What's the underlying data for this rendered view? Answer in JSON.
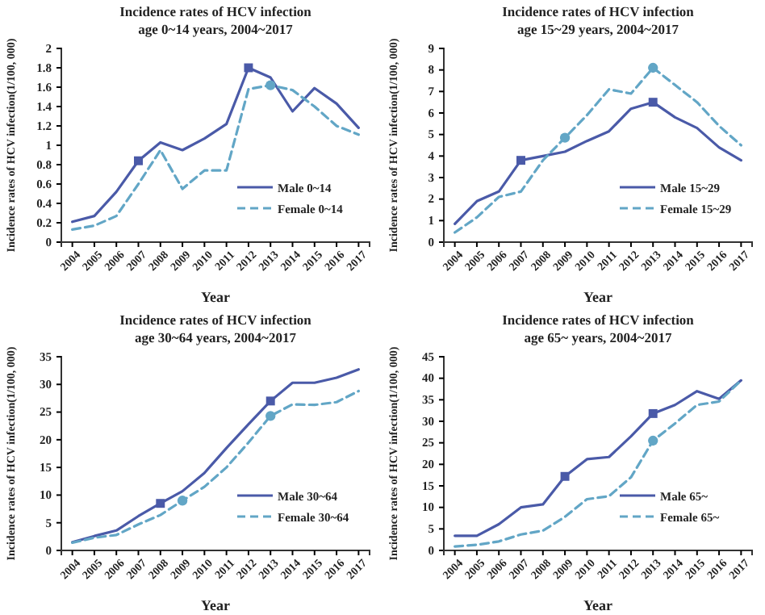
{
  "chart_data": [
    {
      "type": "line",
      "title": "Incidence rates of HCV infection",
      "subtitle": "age 0~14 years, 2004~2017",
      "xlabel": "Year",
      "ylabel": "Incidence rates of HCV infection(1/100, 000)",
      "categories": [
        "2004",
        "2005",
        "2006",
        "2007",
        "2008",
        "2009",
        "2010",
        "2011",
        "2012",
        "2013",
        "2014",
        "2015",
        "2016",
        "2017"
      ],
      "ylim": [
        0,
        2
      ],
      "yticks": [
        0,
        0.2,
        0.4,
        0.6,
        0.8,
        1,
        1.2,
        1.4,
        1.6,
        1.8,
        2
      ],
      "grid": false,
      "legend": "bottom right",
      "series": [
        {
          "name": "Male 0~14",
          "color": "#4a5aa8",
          "line_style": "solid",
          "values": [
            0.21,
            0.27,
            0.52,
            0.84,
            1.03,
            0.95,
            1.07,
            1.22,
            1.8,
            1.7,
            1.35,
            1.59,
            1.43,
            1.18
          ]
        },
        {
          "name": "Female 0~14",
          "color": "#62a6c6",
          "line_style": "dashed",
          "values": [
            0.13,
            0.17,
            0.27,
            0.6,
            0.95,
            0.55,
            0.74,
            0.74,
            1.58,
            1.62,
            1.57,
            1.4,
            1.2,
            1.11
          ]
        },
        {
          "type": "scatter",
          "color": "#4a5aa8",
          "marker": "square",
          "values": [
            null,
            null,
            null,
            0.84,
            null,
            null,
            null,
            null,
            1.8,
            null,
            null,
            null,
            null,
            null
          ]
        },
        {
          "type": "scatter",
          "color": "#62a6c6",
          "marker": "circle",
          "values": [
            null,
            null,
            null,
            null,
            null,
            null,
            null,
            null,
            null,
            1.62,
            null,
            null,
            null,
            null
          ]
        }
      ]
    },
    {
      "type": "line",
      "title": "Incidence rates of HCV infection",
      "subtitle": "age 15~29 years, 2004~2017",
      "xlabel": "Year",
      "ylabel": "Incidence rates of HCV infection(1/100, 000)",
      "categories": [
        "2004",
        "2005",
        "2006",
        "2007",
        "2008",
        "2009",
        "2010",
        "2011",
        "2012",
        "2013",
        "2014",
        "2015",
        "2016",
        "2017"
      ],
      "ylim": [
        0,
        9
      ],
      "yticks": [
        0,
        1,
        2,
        3,
        4,
        5,
        6,
        7,
        8,
        9
      ],
      "grid": false,
      "legend": "bottom right",
      "series": [
        {
          "name": "Male 15~29",
          "color": "#4a5aa8",
          "line_style": "solid",
          "values": [
            0.85,
            1.9,
            2.35,
            3.8,
            4.0,
            4.2,
            4.7,
            5.15,
            6.2,
            6.5,
            5.8,
            5.3,
            4.4,
            3.8
          ]
        },
        {
          "name": "Female 15~29",
          "color": "#62a6c6",
          "line_style": "dashed",
          "values": [
            0.45,
            1.15,
            2.1,
            2.35,
            3.8,
            4.85,
            5.9,
            7.1,
            6.9,
            8.1,
            7.3,
            6.5,
            5.4,
            4.5
          ]
        },
        {
          "type": "scatter",
          "color": "#4a5aa8",
          "marker": "square",
          "values": [
            null,
            null,
            null,
            3.8,
            null,
            null,
            null,
            null,
            null,
            6.5,
            null,
            null,
            null,
            null
          ]
        },
        {
          "type": "scatter",
          "color": "#62a6c6",
          "marker": "circle",
          "values": [
            null,
            null,
            null,
            null,
            null,
            4.85,
            null,
            null,
            null,
            8.1,
            null,
            null,
            null,
            null
          ]
        }
      ]
    },
    {
      "type": "line",
      "title": "Incidence rates of HCV infection",
      "subtitle": "age 30~64 years, 2004~2017",
      "xlabel": "Year",
      "ylabel": "Incidence rates of HCV infection(1/100, 000)",
      "categories": [
        "2004",
        "2005",
        "2006",
        "2007",
        "2008",
        "2009",
        "2010",
        "2011",
        "2012",
        "2013",
        "2014",
        "2015",
        "2016",
        "2017"
      ],
      "ylim": [
        0,
        35
      ],
      "yticks": [
        0,
        5,
        10,
        15,
        20,
        25,
        30,
        35
      ],
      "grid": false,
      "legend": "bottom right",
      "series": [
        {
          "name": "Male 30~64",
          "color": "#4a5aa8",
          "line_style": "solid",
          "values": [
            1.5,
            2.6,
            3.6,
            6.2,
            8.5,
            10.7,
            14,
            18.5,
            22.8,
            27,
            30.3,
            30.3,
            31.2,
            32.7
          ]
        },
        {
          "name": "Female 30~64",
          "color": "#62a6c6",
          "line_style": "dashed",
          "values": [
            1.4,
            2.3,
            2.8,
            4.7,
            6.4,
            9,
            11.5,
            15,
            19.5,
            24.3,
            26.4,
            26.3,
            26.8,
            28.8
          ]
        },
        {
          "type": "scatter",
          "color": "#4a5aa8",
          "marker": "square",
          "values": [
            null,
            null,
            null,
            null,
            8.5,
            null,
            null,
            null,
            null,
            27,
            null,
            null,
            null,
            null
          ]
        },
        {
          "type": "scatter",
          "color": "#62a6c6",
          "marker": "circle",
          "values": [
            null,
            null,
            null,
            null,
            null,
            9,
            null,
            null,
            null,
            24.3,
            null,
            null,
            null,
            null
          ]
        }
      ]
    },
    {
      "type": "line",
      "title": "Incidence rates of HCV infection",
      "subtitle": "age 65~ years, 2004~2017",
      "xlabel": "Year",
      "ylabel": "Incidence rates of HCV infection(1/100, 000)",
      "categories": [
        "2004",
        "2005",
        "2006",
        "2007",
        "2008",
        "2009",
        "2010",
        "2011",
        "2012",
        "2013",
        "2014",
        "2015",
        "2016",
        "2017"
      ],
      "ylim": [
        0,
        45
      ],
      "yticks": [
        0,
        5,
        10,
        15,
        20,
        25,
        30,
        35,
        40,
        45
      ],
      "grid": false,
      "legend": "bottom right",
      "series": [
        {
          "name": "Male 65~",
          "color": "#4a5aa8",
          "line_style": "solid",
          "values": [
            3.4,
            3.4,
            6.1,
            10,
            10.7,
            17.2,
            21.2,
            21.7,
            26.5,
            31.8,
            33.8,
            37,
            35.2,
            39.5
          ]
        },
        {
          "name": "Female 65~",
          "color": "#62a6c6",
          "line_style": "dashed",
          "values": [
            0.9,
            1.3,
            2.1,
            3.7,
            4.6,
            7.8,
            11.9,
            12.6,
            17,
            25.5,
            29.5,
            33.8,
            34.6,
            39.5
          ]
        },
        {
          "type": "scatter",
          "color": "#4a5aa8",
          "marker": "square",
          "values": [
            null,
            null,
            null,
            null,
            null,
            17.2,
            null,
            null,
            null,
            31.8,
            null,
            null,
            null,
            null
          ]
        },
        {
          "type": "scatter",
          "color": "#62a6c6",
          "marker": "circle",
          "values": [
            null,
            null,
            null,
            null,
            null,
            null,
            null,
            null,
            null,
            25.5,
            null,
            null,
            null,
            null
          ]
        }
      ]
    }
  ]
}
